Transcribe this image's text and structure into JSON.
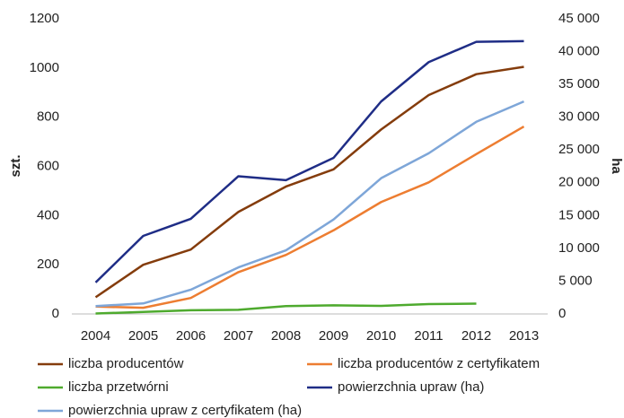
{
  "chart_data": {
    "type": "line",
    "y_label": "szt.",
    "y2_label": "ha",
    "categories": [
      "2004",
      "2005",
      "2006",
      "2007",
      "2008",
      "2009",
      "2010",
      "2011",
      "2012",
      "2013"
    ],
    "ylim": [
      0,
      1200
    ],
    "yticks": [
      0,
      200,
      400,
      600,
      800,
      1000,
      1200
    ],
    "y2lim": [
      0,
      45000
    ],
    "y2ticks": [
      0,
      {
        "value": 5000,
        "label": "5 000"
      },
      {
        "value": 10000,
        "label": "10 000"
      },
      {
        "value": 15000,
        "label": "15 000"
      },
      {
        "value": 20000,
        "label": "20 000"
      },
      {
        "value": 25000,
        "label": "25 000"
      },
      {
        "value": 30000,
        "label": "30 000"
      },
      {
        "value": 35000,
        "label": "35 000"
      },
      {
        "value": 40000,
        "label": "40 000"
      },
      {
        "value": 45000,
        "label": "45 000"
      }
    ],
    "grid": false,
    "series": [
      {
        "name": "liczba producentów",
        "color": "#843c0c",
        "values": [
          68,
          200,
          262,
          415,
          518,
          588,
          750,
          890,
          975,
          1005
        ]
      },
      {
        "name": "liczba producentów z certyfikatem",
        "color": "#ed7d31",
        "values": [
          30,
          25,
          65,
          170,
          240,
          340,
          455,
          535,
          650,
          762
        ]
      },
      {
        "name": "liczba przetwórni",
        "color": "#4eaa2e",
        "values": [
          2,
          8,
          15,
          17,
          32,
          35,
          33,
          40,
          42,
          null
        ]
      },
      {
        "name": "powierzchnia upraw (ha)",
        "color": "#1f2d86",
        "axis": "y2",
        "values": [
          4800,
          11900,
          14500,
          21000,
          20400,
          23800,
          32400,
          38400,
          41500,
          41600
        ]
      },
      {
        "name": "powierzchnia upraw z certyfikatem (ha)",
        "color": "#7ea6d8",
        "axis": "y2",
        "values": [
          1200,
          1600,
          3700,
          7100,
          9700,
          14400,
          20700,
          24500,
          29300,
          32400
        ]
      }
    ]
  }
}
